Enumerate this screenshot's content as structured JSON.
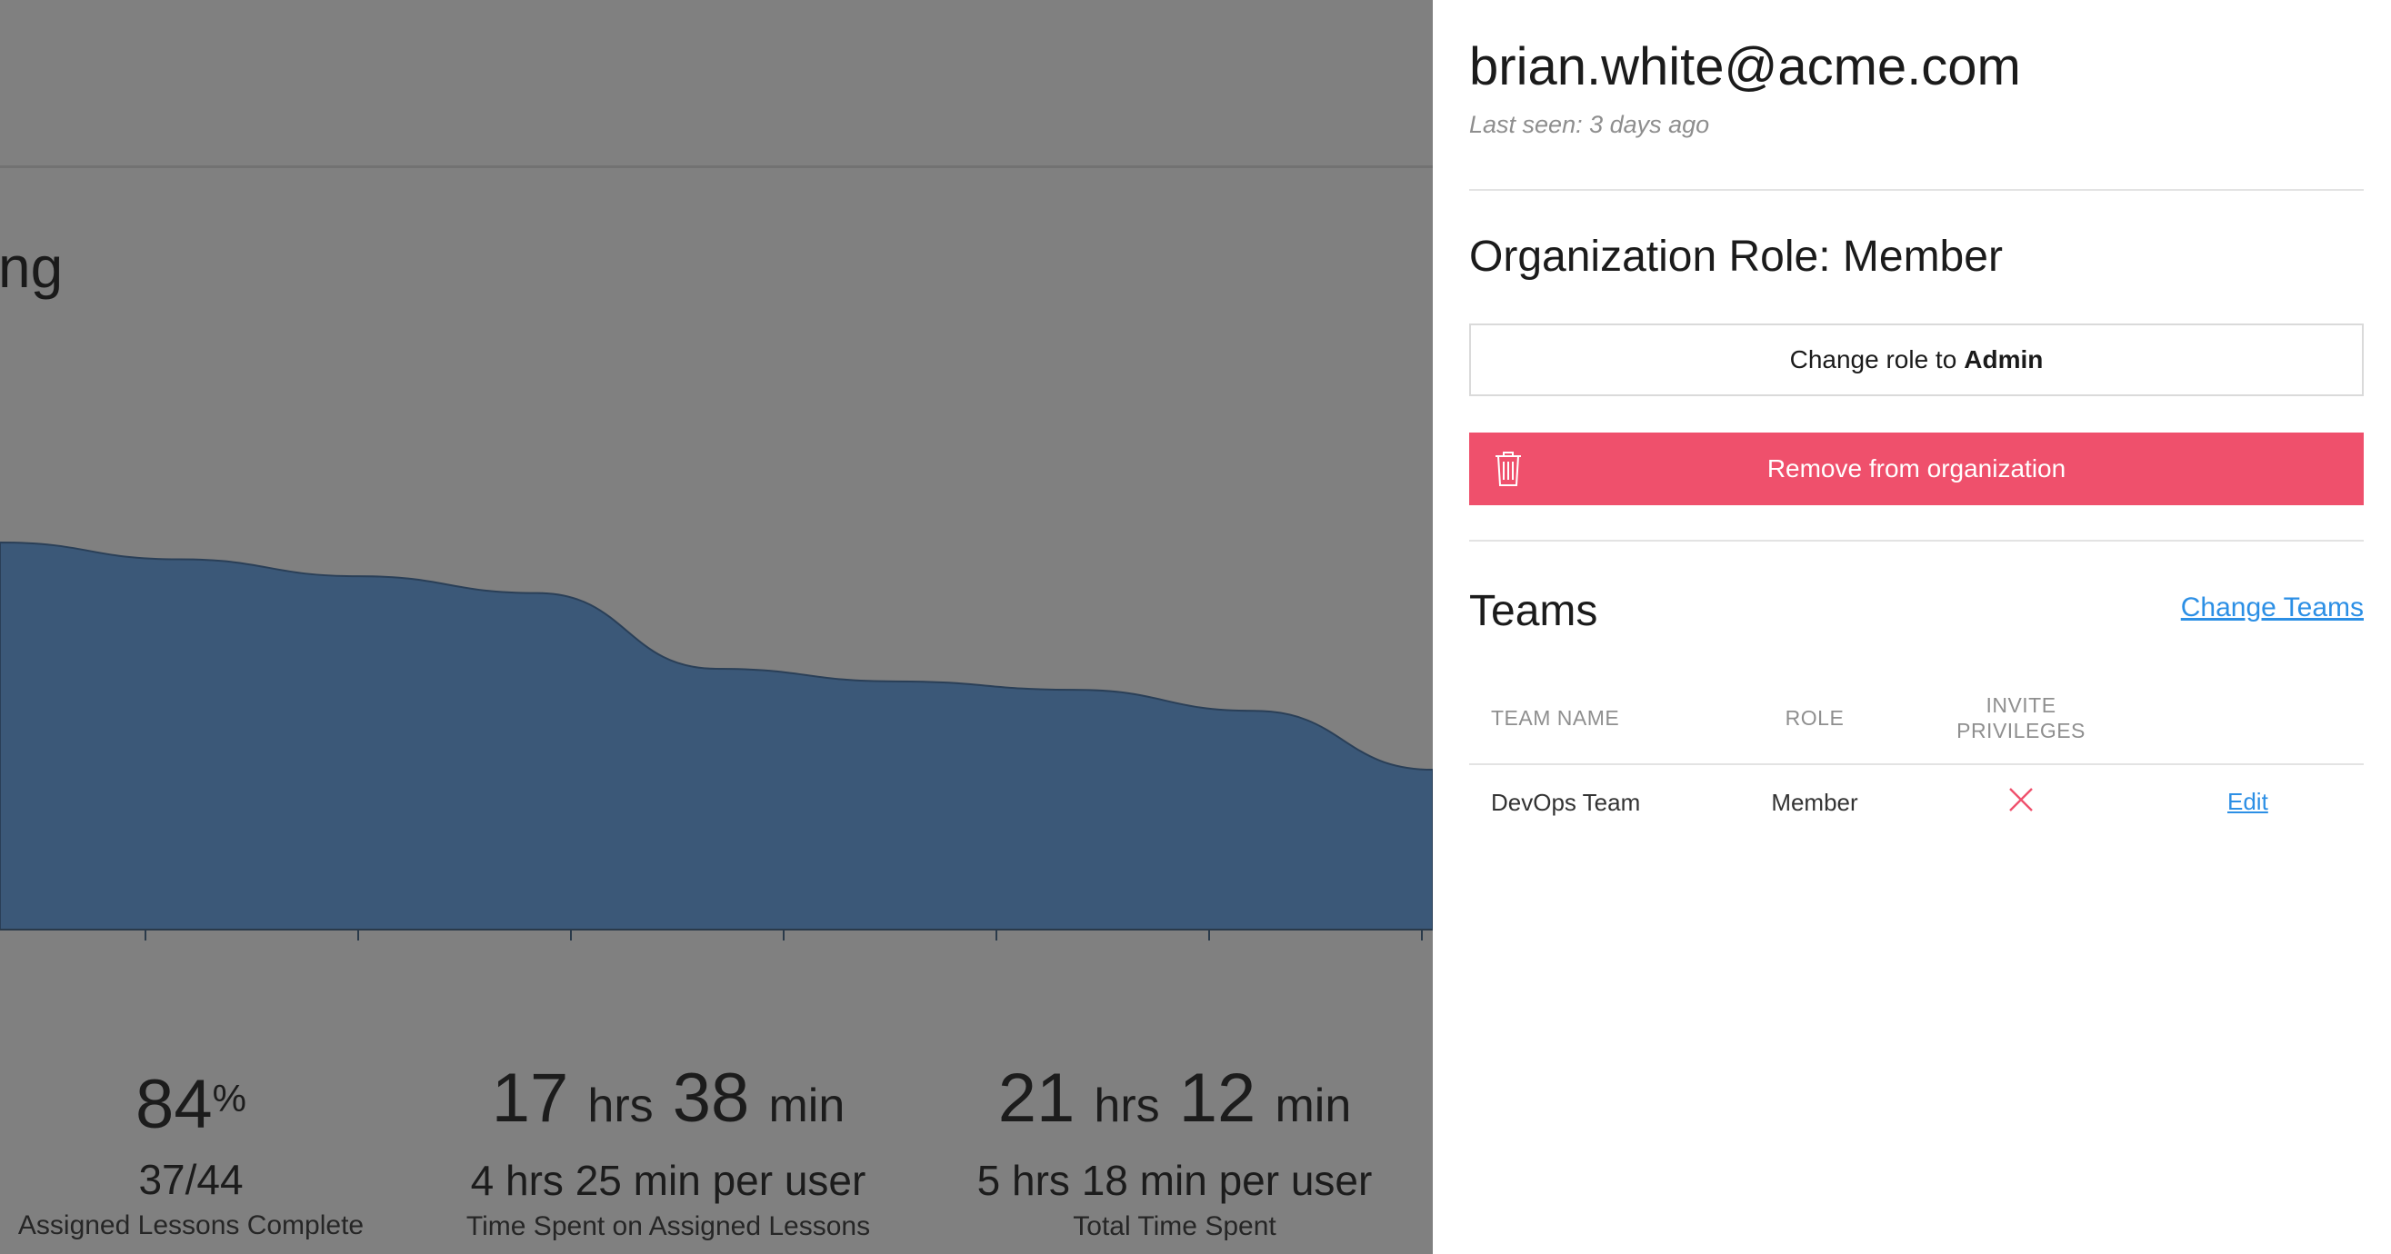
{
  "background": {
    "heading_fragment": "ng",
    "chart_data": {
      "type": "area",
      "x": [
        0,
        1,
        2,
        3,
        4,
        5,
        6,
        7,
        8
      ],
      "values": [
        0.92,
        0.88,
        0.84,
        0.8,
        0.62,
        0.59,
        0.57,
        0.52,
        0.38
      ],
      "ylim": [
        0,
        1
      ],
      "color": "#3b5878"
    },
    "stats": [
      {
        "value": "84",
        "value_suffix": "%",
        "detail": "37/44",
        "label": "Assigned Lessons Complete"
      },
      {
        "hrs": "17",
        "hrs_unit": "hrs",
        "min": "38",
        "min_unit": "min",
        "detail": "4 hrs 25 min per user",
        "label": "Time Spent on Assigned Lessons"
      },
      {
        "hrs": "21",
        "hrs_unit": "hrs",
        "min": "12",
        "min_unit": "min",
        "detail": "5 hrs 18 min per user",
        "label": "Total Time Spent"
      }
    ]
  },
  "drawer": {
    "email": "brian.white@acme.com",
    "last_seen": "Last seen: 3 days ago",
    "role_title": "Organization Role: Member",
    "change_role_prefix": "Change role to",
    "change_role_target": "Admin",
    "remove_label": "Remove from organization",
    "remove_color": "#ef506c",
    "teams_title": "Teams",
    "change_teams_label": "Change Teams",
    "link_color": "#2c8fe5",
    "table": {
      "headers": {
        "team_name": "TEAM NAME",
        "role": "ROLE",
        "invite_line1": "INVITE",
        "invite_line2": "PRIVILEGES"
      },
      "rows": [
        {
          "team_name": "DevOps Team",
          "role": "Member",
          "invite_icon": "x-icon",
          "action": "Edit"
        }
      ]
    }
  }
}
